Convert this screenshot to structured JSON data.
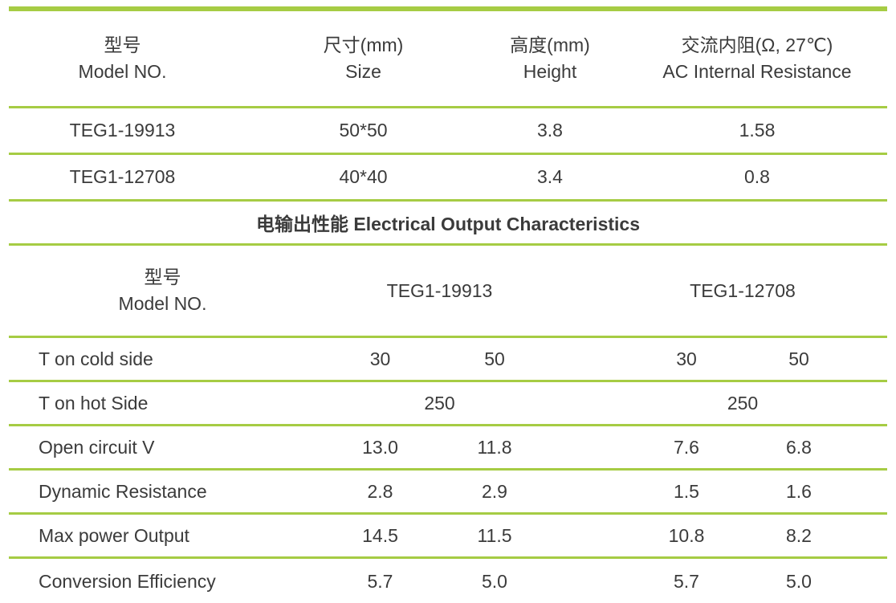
{
  "colors": {
    "line": "#a6cc44",
    "text": "#3b3b3b"
  },
  "spec_table": {
    "headers": [
      {
        "zh": "型号",
        "en": "Model NO."
      },
      {
        "zh": "尺寸(mm)",
        "en": "Size"
      },
      {
        "zh": "高度(mm)",
        "en": "Height"
      },
      {
        "zh": "交流内阻(Ω, 27℃)",
        "en": "AC Internal Resistance"
      }
    ],
    "rows": [
      {
        "model": "TEG1-19913",
        "size": "50*50",
        "height": "3.8",
        "resistance": "1.58"
      },
      {
        "model": "TEG1-12708",
        "size": "40*40",
        "height": "3.4",
        "resistance": "0.8"
      }
    ]
  },
  "section_title": "电输出性能 Electrical Output Characteristics",
  "output_table": {
    "header": {
      "zh": "型号",
      "en": "Model NO.",
      "models": [
        "TEG1-19913",
        "TEG1-12708"
      ]
    },
    "rows": [
      {
        "label": "T on cold side",
        "values": [
          "30",
          "50",
          "30",
          "50"
        ]
      },
      {
        "label": "T on hot Side",
        "span_values": [
          "250",
          "250"
        ]
      },
      {
        "label": "Open circuit V",
        "values": [
          "13.0",
          "11.8",
          "7.6",
          "6.8"
        ]
      },
      {
        "label": "Dynamic Resistance",
        "values": [
          "2.8",
          "2.9",
          "1.5",
          "1.6"
        ]
      },
      {
        "label": "Max power Output",
        "values": [
          "14.5",
          "11.5",
          "10.8",
          "8.2"
        ]
      },
      {
        "label": "Conversion Efficiency",
        "values": [
          "5.7",
          "5.0",
          "5.7",
          "5.0"
        ]
      }
    ]
  }
}
